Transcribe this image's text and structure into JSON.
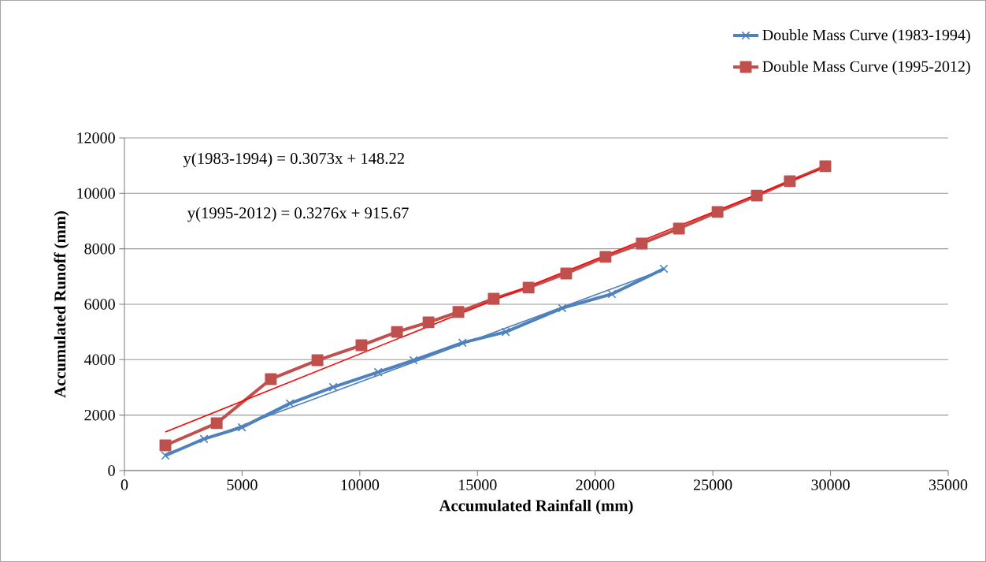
{
  "chart_data": {
    "type": "line",
    "xlabel": "Accumulated Rainfall (mm)",
    "ylabel": "Accumulated Runoff (mm)",
    "xlim": [
      0,
      35000
    ],
    "xticks": [
      0,
      5000,
      10000,
      15000,
      20000,
      25000,
      30000,
      35000
    ],
    "ylim": [
      0,
      12000
    ],
    "yticks": [
      0,
      2000,
      4000,
      6000,
      8000,
      10000,
      12000
    ],
    "grid": "y",
    "legend": "top right",
    "annotations": [
      "y(1983-1994) = 0.3073x + 148.22",
      "y(1995-2012) = 0.3276x + 915.67"
    ],
    "series": [
      {
        "name": "Double Mass Curve (1983-1994)",
        "color": "#4f81bd",
        "marker": "cross",
        "x": [
          1740,
          3380,
          4990,
          7030,
          8870,
          10780,
          12280,
          14360,
          16200,
          18600,
          20710,
          22920
        ],
        "values": [
          540,
          1140,
          1560,
          2420,
          3010,
          3550,
          3980,
          4610,
          5000,
          5860,
          6370,
          7280
        ]
      },
      {
        "name": "Double Mass Curve (1995-2012)",
        "color": "#c0504d",
        "marker": "square",
        "x": [
          1740,
          3920,
          6220,
          8200,
          10070,
          11580,
          12920,
          14190,
          15690,
          17170,
          18770,
          20440,
          21980,
          23560,
          25200,
          26870,
          28270,
          29780
        ],
        "values": [
          910,
          1710,
          3300,
          3980,
          4520,
          5000,
          5350,
          5720,
          6200,
          6600,
          7110,
          7710,
          8190,
          8730,
          9330,
          9920,
          10440,
          10980
        ]
      },
      {
        "type": "line",
        "color": "#4f81bd",
        "marker": "none",
        "x": [
          1740,
          22920
        ],
        "values": [
          600,
          7250
        ]
      },
      {
        "type": "line",
        "color": "#ff0000",
        "marker": "none",
        "x": [
          1740,
          29780
        ],
        "values": [
          1390,
          10950
        ]
      }
    ]
  }
}
